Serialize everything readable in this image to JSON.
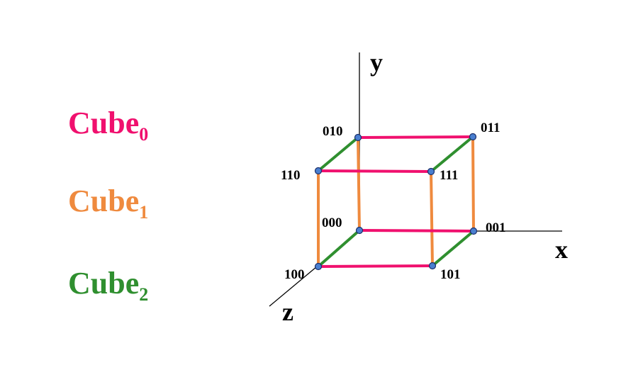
{
  "legend": [
    {
      "base": "Cube",
      "sub": "0",
      "color": "#f0106e"
    },
    {
      "base": "Cube",
      "sub": "1",
      "color": "#ef8a3e"
    },
    {
      "base": "Cube",
      "sub": "2",
      "color": "#2f8f2f"
    }
  ],
  "axes": {
    "x": "x",
    "y": "y",
    "z": "z"
  },
  "vertices": [
    {
      "label": "000"
    },
    {
      "label": "001"
    },
    {
      "label": "010"
    },
    {
      "label": "011"
    },
    {
      "label": "100"
    },
    {
      "label": "101"
    },
    {
      "label": "110"
    },
    {
      "label": "111"
    }
  ],
  "colors": {
    "vertex_fill": "#4a7fd0"
  }
}
